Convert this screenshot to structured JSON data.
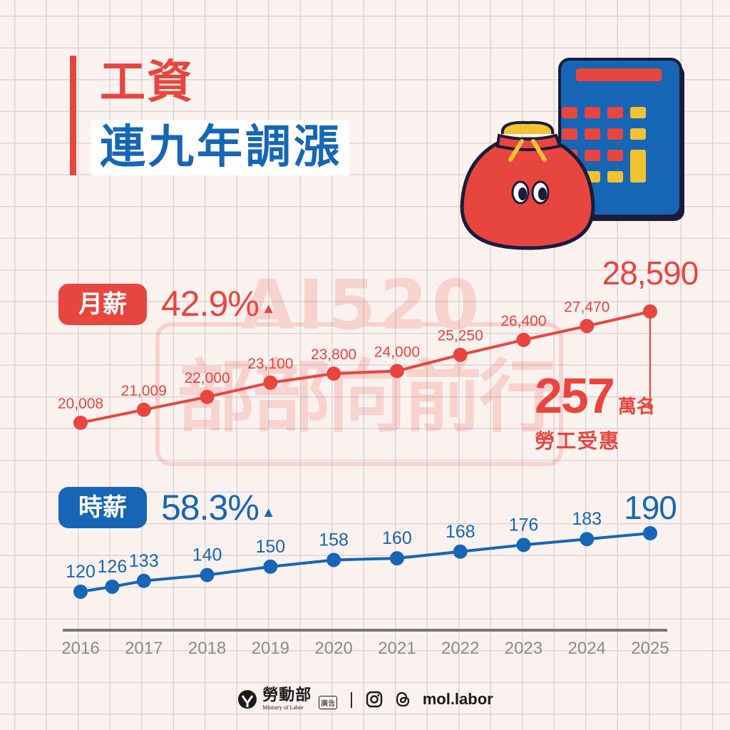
{
  "title": {
    "line1": "工資",
    "line2": "連九年調漲"
  },
  "watermark": {
    "line1": "AI520",
    "line2": "部部向前行"
  },
  "monthly": {
    "label": "月薪",
    "increase": "42.9%",
    "arrow": "▲"
  },
  "hourly": {
    "label": "時薪",
    "increase": "58.3%",
    "arrow": "▲"
  },
  "beneficiaries": {
    "number": "257",
    "unit": "萬名",
    "caption": "勞工受惠"
  },
  "footer": {
    "org_name": "勞動部",
    "org_name_en": "Ministry of Labor",
    "ad_tag": "廣告",
    "separator": "|",
    "handle": "mol.labor"
  },
  "colors": {
    "red": "#e8453f",
    "blue": "#1666b5",
    "axis": "#777777",
    "background": "#fbf2ef"
  },
  "icons": [
    "money-bag-icon",
    "calculator-icon",
    "instagram-icon",
    "threads-icon",
    "ministry-logo-icon"
  ],
  "chart_data": [
    {
      "type": "line",
      "series": [
        {
          "name": "月薪",
          "points": [
            {
              "x": 2016.0,
              "y": 20008,
              "label": "20,008"
            },
            {
              "x": 2017.0,
              "y": 21009,
              "label": "21,009"
            },
            {
              "x": 2018.0,
              "y": 22000,
              "label": "22,000"
            },
            {
              "x": 2019.0,
              "y": 23100,
              "label": "23,100"
            },
            {
              "x": 2020.0,
              "y": 23800,
              "label": "23,800"
            },
            {
              "x": 2021.0,
              "y": 24000,
              "label": "24,000"
            },
            {
              "x": 2022.0,
              "y": 25250,
              "label": "25,250"
            },
            {
              "x": 2023.0,
              "y": 26400,
              "label": "26,400"
            },
            {
              "x": 2024.0,
              "y": 27470,
              "label": "27,470"
            },
            {
              "x": 2025.0,
              "y": 28590,
              "label": "28,590"
            }
          ]
        }
      ],
      "xlim": [
        2016,
        2025
      ],
      "ylim": [
        20008,
        28590
      ]
    },
    {
      "type": "line",
      "series": [
        {
          "name": "時薪",
          "points": [
            {
              "x": 2016.0,
              "y": 120,
              "label": "120"
            },
            {
              "x": 2016.5,
              "y": 126,
              "label": "126"
            },
            {
              "x": 2017.0,
              "y": 133,
              "label": "133"
            },
            {
              "x": 2018.0,
              "y": 140,
              "label": "140"
            },
            {
              "x": 2019.0,
              "y": 150,
              "label": "150"
            },
            {
              "x": 2020.0,
              "y": 158,
              "label": "158"
            },
            {
              "x": 2021.0,
              "y": 160,
              "label": "160"
            },
            {
              "x": 2022.0,
              "y": 168,
              "label": "168"
            },
            {
              "x": 2023.0,
              "y": 176,
              "label": "176"
            },
            {
              "x": 2024.0,
              "y": 183,
              "label": "183"
            },
            {
              "x": 2025.0,
              "y": 190,
              "label": "190"
            }
          ]
        }
      ],
      "xlim": [
        2016,
        2025
      ],
      "ylim": [
        120,
        190
      ]
    }
  ],
  "x_axis": {
    "ticks": [
      "2016",
      "2017",
      "2018",
      "2019",
      "2020",
      "2021",
      "2022",
      "2023",
      "2024",
      "2025"
    ]
  }
}
